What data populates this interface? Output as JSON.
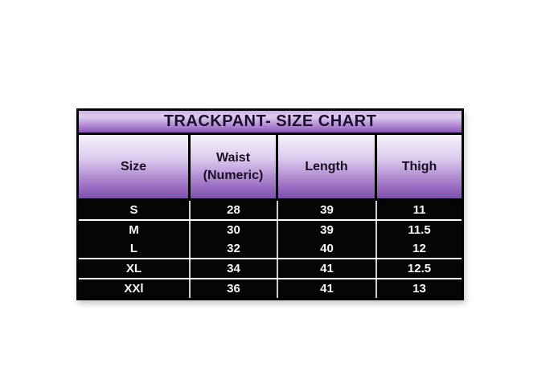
{
  "chart_data": {
    "type": "table",
    "title": "TRACKPANT- SIZE CHART",
    "columns": [
      "Size",
      "Waist (Numeric)",
      "Length",
      "Thigh"
    ],
    "rows": [
      [
        "S",
        "28",
        "39",
        "11"
      ],
      [
        "M",
        "30",
        "39",
        "11.5"
      ],
      [
        "L",
        "32",
        "40",
        "12"
      ],
      [
        "XL",
        "34",
        "41",
        "12.5"
      ],
      [
        "XXl",
        "36",
        "41",
        "13"
      ]
    ]
  },
  "colors": {
    "title_gradient_top": "#c9b5e0",
    "title_gradient_bottom": "#8a59b5",
    "header_gradient_top": "#f7f3fb",
    "header_gradient_bottom": "#7e51a9",
    "header_text": "#1a1024",
    "title_text": "#1c0f2e",
    "row_background": "#050505",
    "row_text": "#f7f7f7",
    "row_separator": "#ffffff",
    "column_separator_data": "#cfcfcf",
    "table_border": "#000000",
    "page_background": "#ffffff"
  }
}
